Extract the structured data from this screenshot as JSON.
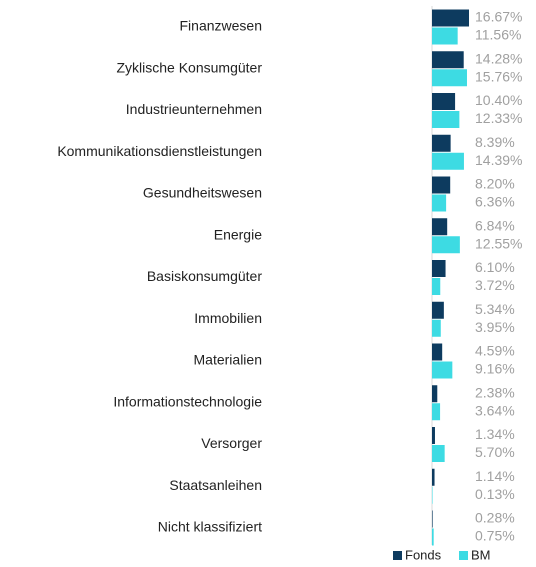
{
  "chart_data": {
    "type": "bar",
    "orientation": "horizontal",
    "categories": [
      "Finanzwesen",
      "Zyklische Konsumgüter",
      "Industrieunternehmen",
      "Kommunikationsdienstleistungen",
      "Gesundheitswesen",
      "Energie",
      "Basiskonsumgüter",
      "Immobilien",
      "Materialien",
      "Informationstechnologie",
      "Versorger",
      "Staatsanleihen",
      "Nicht klassifiziert"
    ],
    "series": [
      {
        "name": "Fonds",
        "color": "#0d3b5f",
        "values": [
          16.67,
          14.28,
          10.4,
          8.39,
          8.2,
          6.84,
          6.1,
          5.34,
          4.59,
          2.38,
          1.34,
          1.14,
          0.28
        ],
        "value_labels": [
          "16.67%",
          "14.28%",
          "10.40%",
          "8.39%",
          "8.20%",
          "6.84%",
          "6.10%",
          "5.34%",
          "4.59%",
          "2.38%",
          "1.34%",
          "1.14%",
          "0.28%"
        ]
      },
      {
        "name": "BM",
        "color": "#3ddbe3",
        "values": [
          11.56,
          15.76,
          12.33,
          14.39,
          6.36,
          12.55,
          3.72,
          3.95,
          9.16,
          3.64,
          5.7,
          0.13,
          0.75
        ],
        "value_labels": [
          "11.56%",
          "15.76%",
          "12.33%",
          "14.39%",
          "6.36%",
          "12.55%",
          "3.72%",
          "3.95%",
          "9.16%",
          "3.64%",
          "5.70%",
          "0.13%",
          "0.75%"
        ]
      }
    ],
    "legend": "bottom"
  }
}
